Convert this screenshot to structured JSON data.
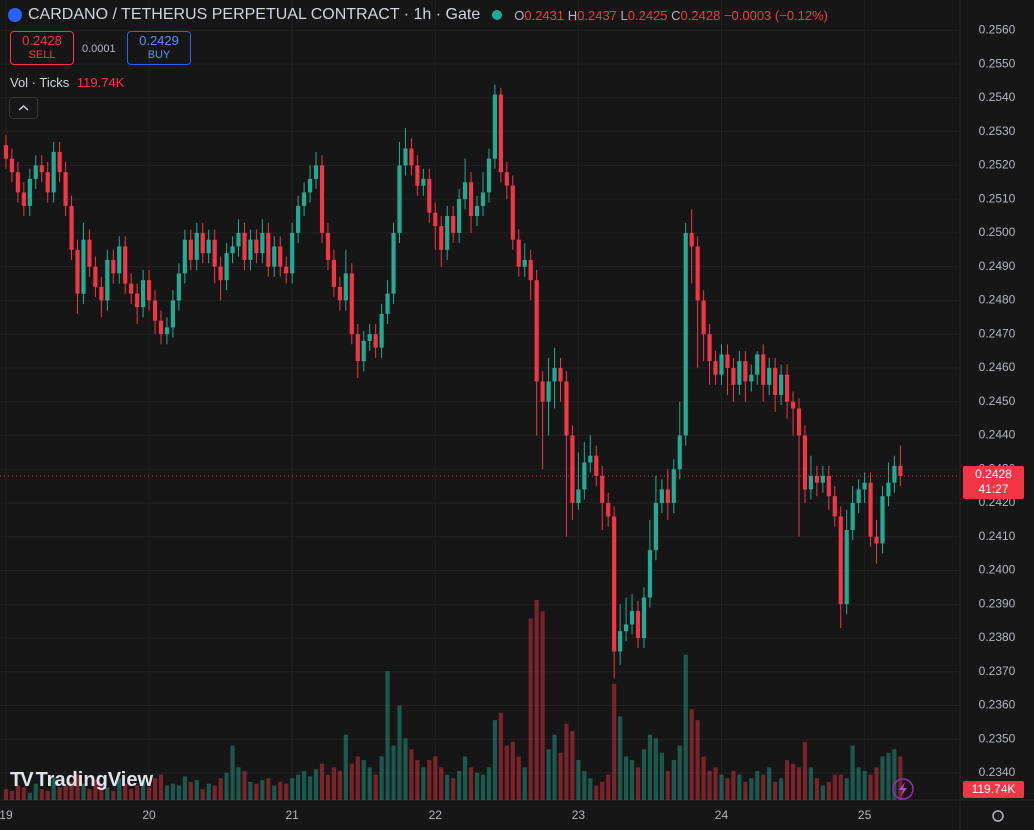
{
  "header": {
    "title": "CARDANO / TETHERUS PERPETUAL CONTRACT · 1h · Gate",
    "o": "O",
    "h": "H",
    "l": "L",
    "c": "C",
    "change": "−0.0003 (−0.12%)",
    "sell_price": "0.2428",
    "sell": "SELL",
    "spread": "0.0001",
    "buy_price": "0.2429",
    "buy": "BUY",
    "vol_title": "Vol · Ticks",
    "vol_value": "119.74K",
    "countdown": "41:27",
    "brand": "TradingView"
  },
  "chart_data": {
    "type": "candlestick",
    "up_color": "#22ab94",
    "down_color": "#f23645",
    "xlim": [
      -1,
      160
    ],
    "xticks": [
      {
        "value": 0,
        "label": "19"
      },
      {
        "value": 24,
        "label": "20"
      },
      {
        "value": 48,
        "label": "21"
      },
      {
        "value": 72,
        "label": "22"
      },
      {
        "value": 96,
        "label": "23"
      },
      {
        "value": 120,
        "label": "24"
      },
      {
        "value": 144,
        "label": "25"
      }
    ],
    "ylim": [
      0.2332,
      0.2569
    ],
    "yticks": [
      {
        "value": 0.234,
        "label": "0.2340"
      },
      {
        "value": 0.235,
        "label": "0.2350"
      },
      {
        "value": 0.236,
        "label": "0.2360"
      },
      {
        "value": 0.237,
        "label": "0.2370"
      },
      {
        "value": 0.238,
        "label": "0.2380"
      },
      {
        "value": 0.239,
        "label": "0.2390"
      },
      {
        "value": 0.24,
        "label": "0.2400"
      },
      {
        "value": 0.241,
        "label": "0.2410"
      },
      {
        "value": 0.242,
        "label": "0.2420"
      },
      {
        "value": 0.243,
        "label": "0.2430"
      },
      {
        "value": 0.244,
        "label": "0.2440"
      },
      {
        "value": 0.245,
        "label": "0.2450"
      },
      {
        "value": 0.246,
        "label": "0.2460"
      },
      {
        "value": 0.247,
        "label": "0.2470"
      },
      {
        "value": 0.248,
        "label": "0.2480"
      },
      {
        "value": 0.249,
        "label": "0.2490"
      },
      {
        "value": 0.25,
        "label": "0.2500"
      },
      {
        "value": 0.251,
        "label": "0.2510"
      },
      {
        "value": 0.252,
        "label": "0.2520"
      },
      {
        "value": 0.253,
        "label": "0.2530"
      },
      {
        "value": 0.254,
        "label": "0.2540"
      },
      {
        "value": 0.255,
        "label": "0.2550"
      },
      {
        "value": 0.256,
        "label": "0.2560"
      }
    ],
    "grid": true,
    "ohlc": [
      [
        0.2526,
        0.2529,
        0.2519,
        0.2522
      ],
      [
        0.2522,
        0.2525,
        0.2515,
        0.2518
      ],
      [
        0.2518,
        0.2521,
        0.2509,
        0.2512
      ],
      [
        0.2512,
        0.2515,
        0.2505,
        0.2508
      ],
      [
        0.2508,
        0.2519,
        0.2505,
        0.2516
      ],
      [
        0.2516,
        0.2523,
        0.2513,
        0.252
      ],
      [
        0.252,
        0.2523,
        0.2515,
        0.2518
      ],
      [
        0.2518,
        0.2521,
        0.2509,
        0.2512
      ],
      [
        0.2512,
        0.2527,
        0.2509,
        0.2524
      ],
      [
        0.2524,
        0.2527,
        0.2515,
        0.2518
      ],
      [
        0.2518,
        0.2521,
        0.2505,
        0.2508
      ],
      [
        0.2508,
        0.2511,
        0.2492,
        0.2495
      ],
      [
        0.2495,
        0.2498,
        0.2476,
        0.2482
      ],
      [
        0.2482,
        0.2503,
        0.2479,
        0.2498
      ],
      [
        0.2498,
        0.2501,
        0.2487,
        0.249
      ],
      [
        0.249,
        0.2493,
        0.2481,
        0.2484
      ],
      [
        0.2484,
        0.2487,
        0.2475,
        0.248
      ],
      [
        0.248,
        0.2495,
        0.2477,
        0.2492
      ],
      [
        0.2492,
        0.2495,
        0.2485,
        0.2488
      ],
      [
        0.2488,
        0.2499,
        0.2485,
        0.2496
      ],
      [
        0.2496,
        0.2499,
        0.2482,
        0.2485
      ],
      [
        0.2485,
        0.2488,
        0.2479,
        0.2482
      ],
      [
        0.2482,
        0.2485,
        0.2473,
        0.2478
      ],
      [
        0.2478,
        0.2489,
        0.2475,
        0.2486
      ],
      [
        0.2486,
        0.2489,
        0.2477,
        0.248
      ],
      [
        0.248,
        0.2483,
        0.247,
        0.2474
      ],
      [
        0.2474,
        0.2477,
        0.2467,
        0.247
      ],
      [
        0.247,
        0.2475,
        0.2467,
        0.2472
      ],
      [
        0.2472,
        0.2483,
        0.2469,
        0.248
      ],
      [
        0.248,
        0.2491,
        0.2477,
        0.2488
      ],
      [
        0.2488,
        0.2501,
        0.2485,
        0.2498
      ],
      [
        0.2498,
        0.2501,
        0.2489,
        0.2492
      ],
      [
        0.2492,
        0.2503,
        0.2489,
        0.25
      ],
      [
        0.25,
        0.2503,
        0.2491,
        0.2494
      ],
      [
        0.2494,
        0.2501,
        0.2491,
        0.2498
      ],
      [
        0.2498,
        0.2501,
        0.2485,
        0.249
      ],
      [
        0.249,
        0.2493,
        0.248,
        0.2486
      ],
      [
        0.2486,
        0.2497,
        0.2483,
        0.2494
      ],
      [
        0.2494,
        0.2499,
        0.2491,
        0.2496
      ],
      [
        0.2496,
        0.2504,
        0.2493,
        0.25
      ],
      [
        0.25,
        0.2503,
        0.2489,
        0.2492
      ],
      [
        0.2492,
        0.2501,
        0.2489,
        0.2498
      ],
      [
        0.2498,
        0.2501,
        0.2491,
        0.2494
      ],
      [
        0.2494,
        0.2504,
        0.2491,
        0.25
      ],
      [
        0.25,
        0.2503,
        0.2487,
        0.249
      ],
      [
        0.249,
        0.2499,
        0.2487,
        0.2496
      ],
      [
        0.2496,
        0.2499,
        0.2487,
        0.249
      ],
      [
        0.249,
        0.2493,
        0.2485,
        0.2488
      ],
      [
        0.2488,
        0.2503,
        0.2485,
        0.25
      ],
      [
        0.25,
        0.2511,
        0.2497,
        0.2508
      ],
      [
        0.2508,
        0.2515,
        0.2505,
        0.2512
      ],
      [
        0.2512,
        0.252,
        0.2509,
        0.2516
      ],
      [
        0.2516,
        0.2524,
        0.2513,
        0.252
      ],
      [
        0.252,
        0.2523,
        0.2497,
        0.25
      ],
      [
        0.25,
        0.2503,
        0.2489,
        0.2492
      ],
      [
        0.2492,
        0.2495,
        0.2481,
        0.2484
      ],
      [
        0.2484,
        0.2487,
        0.2477,
        0.248
      ],
      [
        0.248,
        0.2495,
        0.2477,
        0.2488
      ],
      [
        0.2488,
        0.2491,
        0.2467,
        0.247
      ],
      [
        0.247,
        0.2473,
        0.2457,
        0.2462
      ],
      [
        0.2462,
        0.2471,
        0.2459,
        0.2468
      ],
      [
        0.2468,
        0.2473,
        0.2465,
        0.247
      ],
      [
        0.247,
        0.2473,
        0.2463,
        0.2466
      ],
      [
        0.2466,
        0.2479,
        0.2463,
        0.2476
      ],
      [
        0.2476,
        0.2486,
        0.2473,
        0.2482
      ],
      [
        0.2482,
        0.2503,
        0.2479,
        0.25
      ],
      [
        0.25,
        0.2527,
        0.2497,
        0.252
      ],
      [
        0.252,
        0.2531,
        0.2517,
        0.2525
      ],
      [
        0.2525,
        0.2528,
        0.2517,
        0.252
      ],
      [
        0.252,
        0.2523,
        0.2511,
        0.2514
      ],
      [
        0.2514,
        0.2519,
        0.2511,
        0.2516
      ],
      [
        0.2516,
        0.2519,
        0.2503,
        0.2506
      ],
      [
        0.2506,
        0.2509,
        0.2495,
        0.2502
      ],
      [
        0.2502,
        0.2505,
        0.249,
        0.2495
      ],
      [
        0.2495,
        0.2508,
        0.2492,
        0.2505
      ],
      [
        0.2505,
        0.2508,
        0.2497,
        0.25
      ],
      [
        0.25,
        0.2513,
        0.2497,
        0.251
      ],
      [
        0.251,
        0.2522,
        0.2507,
        0.2515
      ],
      [
        0.2515,
        0.2518,
        0.25,
        0.2505
      ],
      [
        0.2505,
        0.2511,
        0.2502,
        0.2508
      ],
      [
        0.2508,
        0.2518,
        0.2505,
        0.2512
      ],
      [
        0.2512,
        0.2525,
        0.2509,
        0.2522
      ],
      [
        0.2522,
        0.2544,
        0.2519,
        0.2541
      ],
      [
        0.2541,
        0.2543,
        0.2515,
        0.2518
      ],
      [
        0.2518,
        0.2521,
        0.251,
        0.2514
      ],
      [
        0.2514,
        0.2517,
        0.2495,
        0.2498
      ],
      [
        0.2498,
        0.2501,
        0.2487,
        0.249
      ],
      [
        0.249,
        0.2497,
        0.2487,
        0.2492
      ],
      [
        0.2492,
        0.2495,
        0.248,
        0.2486
      ],
      [
        0.2486,
        0.2489,
        0.244,
        0.2456
      ],
      [
        0.2456,
        0.2459,
        0.243,
        0.245
      ],
      [
        0.245,
        0.2463,
        0.244,
        0.2456
      ],
      [
        0.2456,
        0.2466,
        0.2448,
        0.246
      ],
      [
        0.246,
        0.2463,
        0.245,
        0.2456
      ],
      [
        0.2456,
        0.2459,
        0.241,
        0.244
      ],
      [
        0.244,
        0.2443,
        0.2415,
        0.242
      ],
      [
        0.242,
        0.2435,
        0.2418,
        0.2424
      ],
      [
        0.2424,
        0.2438,
        0.2421,
        0.2432
      ],
      [
        0.2432,
        0.244,
        0.2429,
        0.2434
      ],
      [
        0.2434,
        0.2437,
        0.2425,
        0.2428
      ],
      [
        0.2428,
        0.2431,
        0.2412,
        0.242
      ],
      [
        0.242,
        0.2423,
        0.2413,
        0.2416
      ],
      [
        0.2416,
        0.2419,
        0.2368,
        0.2376
      ],
      [
        0.2376,
        0.239,
        0.2372,
        0.2382
      ],
      [
        0.2382,
        0.2392,
        0.2379,
        0.2384
      ],
      [
        0.2384,
        0.2393,
        0.2381,
        0.2388
      ],
      [
        0.2388,
        0.2391,
        0.2377,
        0.238
      ],
      [
        0.238,
        0.2395,
        0.2377,
        0.2392
      ],
      [
        0.2392,
        0.2415,
        0.2389,
        0.2406
      ],
      [
        0.2406,
        0.2428,
        0.2403,
        0.242
      ],
      [
        0.242,
        0.2427,
        0.2417,
        0.2424
      ],
      [
        0.2424,
        0.243,
        0.2415,
        0.242
      ],
      [
        0.242,
        0.2433,
        0.2417,
        0.243
      ],
      [
        0.243,
        0.245,
        0.2427,
        0.244
      ],
      [
        0.244,
        0.2503,
        0.2437,
        0.25
      ],
      [
        0.25,
        0.2507,
        0.2485,
        0.2496
      ],
      [
        0.2496,
        0.2499,
        0.246,
        0.248
      ],
      [
        0.248,
        0.2483,
        0.2462,
        0.247
      ],
      [
        0.247,
        0.2473,
        0.2455,
        0.2462
      ],
      [
        0.2462,
        0.2465,
        0.2455,
        0.2458
      ],
      [
        0.2458,
        0.2467,
        0.2455,
        0.2464
      ],
      [
        0.2464,
        0.2467,
        0.2452,
        0.246
      ],
      [
        0.246,
        0.2463,
        0.245,
        0.2455
      ],
      [
        0.2455,
        0.2465,
        0.2452,
        0.2462
      ],
      [
        0.2462,
        0.2465,
        0.245,
        0.2456
      ],
      [
        0.2456,
        0.2461,
        0.2453,
        0.2458
      ],
      [
        0.2458,
        0.2465,
        0.2455,
        0.2464
      ],
      [
        0.2464,
        0.2467,
        0.245,
        0.2455
      ],
      [
        0.2455,
        0.2463,
        0.2452,
        0.246
      ],
      [
        0.246,
        0.2463,
        0.2447,
        0.2452
      ],
      [
        0.2452,
        0.2461,
        0.2449,
        0.2458
      ],
      [
        0.2458,
        0.2461,
        0.2445,
        0.245
      ],
      [
        0.245,
        0.2453,
        0.244,
        0.2448
      ],
      [
        0.2448,
        0.2451,
        0.241,
        0.244
      ],
      [
        0.244,
        0.2443,
        0.242,
        0.2424
      ],
      [
        0.2424,
        0.2434,
        0.2421,
        0.2428
      ],
      [
        0.2428,
        0.2431,
        0.2422,
        0.2426
      ],
      [
        0.2426,
        0.2431,
        0.2423,
        0.2428
      ],
      [
        0.2428,
        0.2431,
        0.2418,
        0.2422
      ],
      [
        0.2422,
        0.2425,
        0.2413,
        0.2416
      ],
      [
        0.2416,
        0.2419,
        0.2383,
        0.239
      ],
      [
        0.239,
        0.2418,
        0.2387,
        0.2412
      ],
      [
        0.2412,
        0.2425,
        0.2409,
        0.242
      ],
      [
        0.242,
        0.2427,
        0.2417,
        0.2424
      ],
      [
        0.2424,
        0.2429,
        0.242,
        0.2426
      ],
      [
        0.2426,
        0.2429,
        0.2407,
        0.241
      ],
      [
        0.241,
        0.2415,
        0.2402,
        0.2408
      ],
      [
        0.2408,
        0.2425,
        0.2405,
        0.2422
      ],
      [
        0.2422,
        0.2432,
        0.2419,
        0.2426
      ],
      [
        0.2426,
        0.2434,
        0.2423,
        0.2431
      ],
      [
        0.2431,
        0.2437,
        0.2425,
        0.2428
      ]
    ],
    "volume": [
      30,
      25,
      40,
      35,
      20,
      45,
      30,
      25,
      60,
      35,
      40,
      50,
      70,
      45,
      30,
      55,
      40,
      35,
      25,
      60,
      45,
      30,
      40,
      55,
      35,
      60,
      70,
      40,
      45,
      40,
      65,
      50,
      55,
      30,
      45,
      40,
      60,
      75,
      150,
      90,
      80,
      50,
      45,
      55,
      60,
      40,
      50,
      45,
      60,
      70,
      80,
      65,
      85,
      100,
      70,
      90,
      80,
      180,
      100,
      120,
      110,
      90,
      70,
      120,
      355,
      150,
      260,
      170,
      140,
      110,
      90,
      110,
      120,
      90,
      70,
      60,
      80,
      120,
      90,
      75,
      70,
      90,
      220,
      240,
      150,
      160,
      120,
      90,
      500,
      551,
      520,
      140,
      180,
      130,
      210,
      190,
      110,
      80,
      60,
      40,
      50,
      70,
      320,
      230,
      120,
      110,
      90,
      140,
      180,
      170,
      130,
      80,
      110,
      150,
      400,
      250,
      220,
      120,
      80,
      90,
      70,
      60,
      80,
      70,
      50,
      60,
      80,
      70,
      90,
      50,
      60,
      110,
      100,
      90,
      160,
      90,
      60,
      40,
      50,
      70,
      70,
      60,
      150,
      90,
      80,
      70,
      90,
      120,
      130,
      140,
      119.74
    ]
  }
}
